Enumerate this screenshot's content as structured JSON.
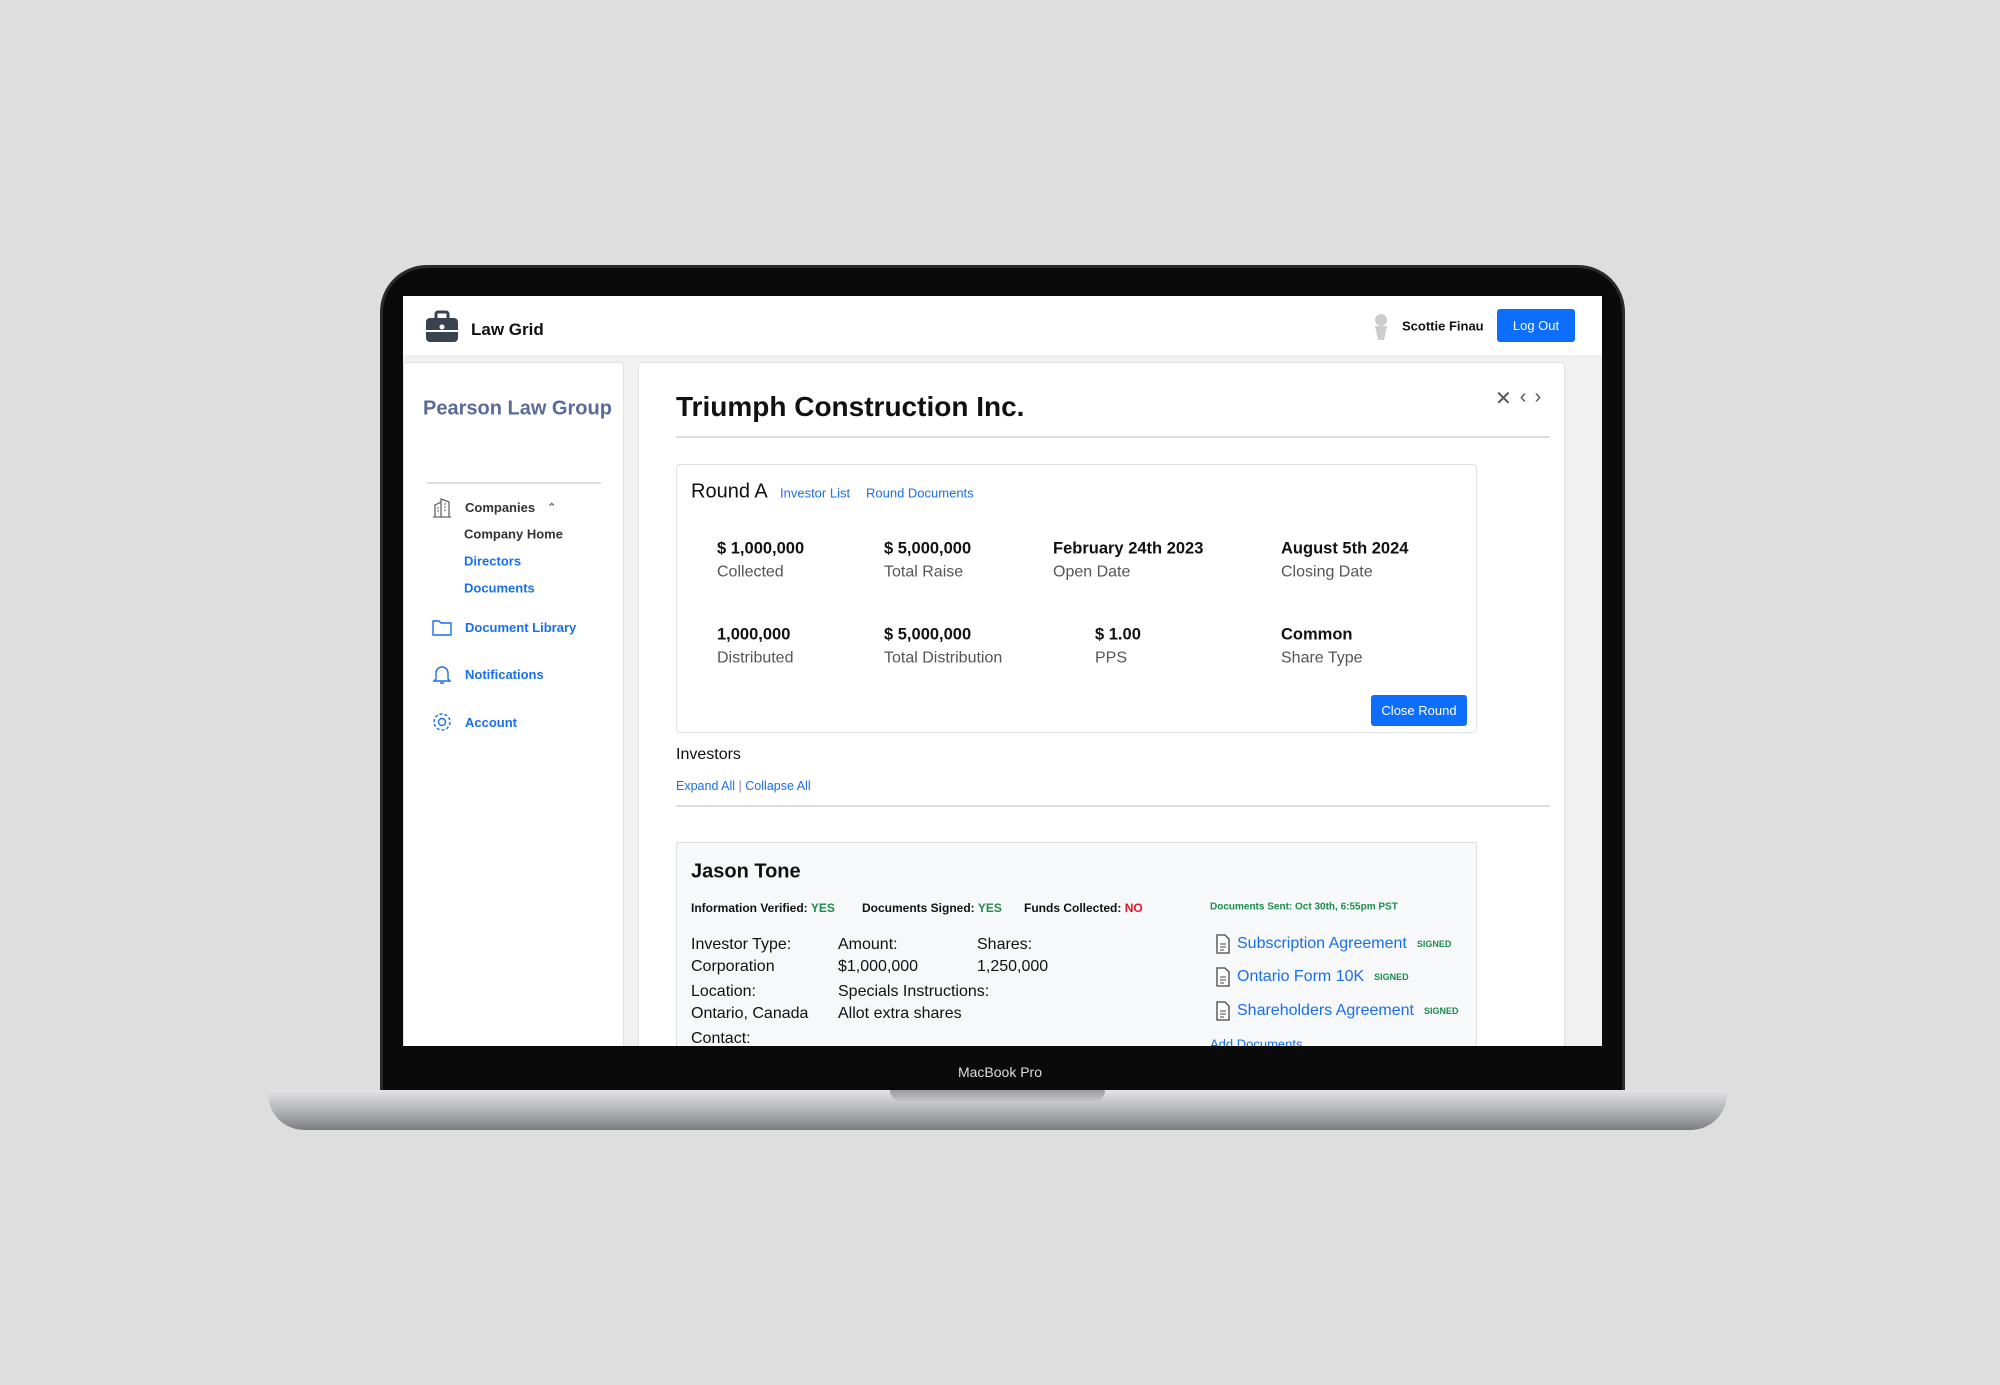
{
  "device_label": "MacBook Pro",
  "header": {
    "app_name": "Law Grid",
    "user_name": "Scottie Finau",
    "logout_label": "Log Out"
  },
  "sidebar": {
    "firm_name": "Pearson Law Group",
    "companies_label": "Companies",
    "sub_items": [
      {
        "label": "Company Home",
        "active": true
      },
      {
        "label": "Directors"
      },
      {
        "label": "Documents"
      }
    ],
    "items": [
      {
        "label": "Document Library",
        "icon": "folder-icon"
      },
      {
        "label": "Notifications",
        "icon": "bell-icon"
      },
      {
        "label": "Account",
        "icon": "gear-icon"
      }
    ]
  },
  "main": {
    "title": "Triumph Construction Inc.",
    "round": {
      "name": "Round A",
      "links": [
        "Investor List",
        "Round Documents"
      ],
      "stats": [
        {
          "value": "$ 1,000,000",
          "label": "Collected"
        },
        {
          "value": "$ 5,000,000",
          "label": "Total Raise"
        },
        {
          "value": "February 24th 2023",
          "label": "Open Date"
        },
        {
          "value": "August 5th 2024",
          "label": "Closing Date"
        },
        {
          "value": "1,000,000",
          "label": "Distributed"
        },
        {
          "value": "$ 5,000,000",
          "label": "Total Distribution"
        },
        {
          "value": "$ 1.00",
          "label": "PPS"
        },
        {
          "value": "Common",
          "label": "Share Type"
        }
      ],
      "close_label": "Close Round"
    },
    "investors_label": "Investors",
    "expand_all": "Expand All",
    "collapse_all": "Collapse All",
    "investor": {
      "name": "Jason Tone",
      "status": [
        {
          "label": "Information Verified:",
          "value": "YES",
          "color": "#1e8c4e"
        },
        {
          "label": "Documents Signed:",
          "value": "YES",
          "color": "#1e8c4e"
        },
        {
          "label": "Funds Collected:",
          "value": "NO",
          "color": "#e0182d"
        }
      ],
      "documents_sent": "Documents Sent: Oct 30th, 6:55pm PST",
      "fields": {
        "type_label": "Investor Type:",
        "type": "Corporation",
        "amount_label": "Amount:",
        "amount": "$1,000,000",
        "shares_label": "Shares:",
        "shares": "1,250,000",
        "location_label": "Location:",
        "location": "Ontario, Canada",
        "instructions_label": "Specials Instructions:",
        "instructions": "Allot extra shares",
        "contact_label": "Contact:"
      },
      "documents": [
        {
          "name": "Subscription Agreement",
          "status": "SIGNED"
        },
        {
          "name": "Ontario Form 10K",
          "status": "SIGNED"
        },
        {
          "name": "Shareholders Agreement",
          "status": "SIGNED"
        }
      ],
      "add_documents": "Add Documents"
    }
  }
}
